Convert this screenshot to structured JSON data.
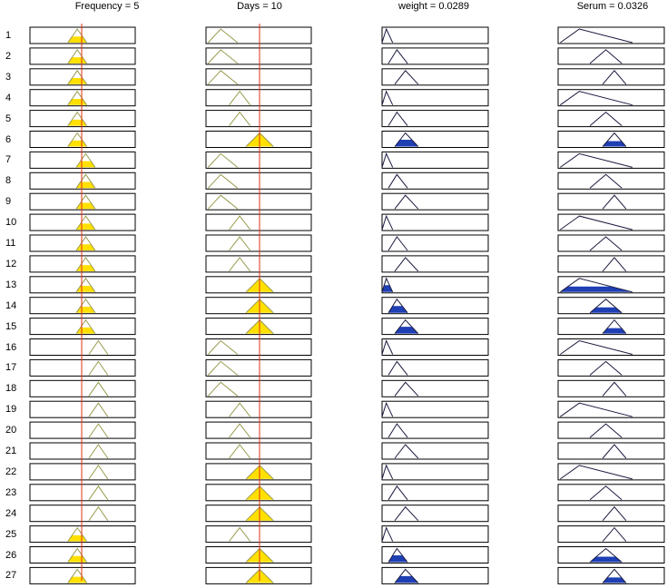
{
  "headers": [
    {
      "label": "Frequency = 5",
      "name": "frequency-header"
    },
    {
      "label": "Days = 10",
      "name": "days-header"
    },
    {
      "label": "weight = 0.0289",
      "name": "weight-header"
    },
    {
      "label": "Serum = 0.0326",
      "name": "serum-header"
    }
  ],
  "rows": [
    {
      "num": "1",
      "mf": [
        "f1",
        "d1",
        "w1",
        "s1"
      ],
      "fired": [
        1,
        0,
        0,
        0
      ]
    },
    {
      "num": "2",
      "mf": [
        "f1",
        "d1",
        "w2",
        "s2"
      ],
      "fired": [
        1,
        0,
        0,
        0
      ]
    },
    {
      "num": "3",
      "mf": [
        "f1",
        "d1",
        "w3",
        "s3"
      ],
      "fired": [
        1,
        0,
        0,
        0
      ]
    },
    {
      "num": "4",
      "mf": [
        "f1",
        "d2",
        "w1",
        "s1"
      ],
      "fired": [
        1,
        0,
        0,
        0
      ]
    },
    {
      "num": "5",
      "mf": [
        "f1",
        "d2",
        "w2",
        "s2"
      ],
      "fired": [
        1,
        0,
        0,
        0
      ]
    },
    {
      "num": "6",
      "mf": [
        "f1",
        "d3",
        "w3",
        "s3"
      ],
      "fired": [
        1,
        1,
        1,
        1
      ]
    },
    {
      "num": "7",
      "mf": [
        "f2",
        "d1",
        "w1",
        "s1"
      ],
      "fired": [
        1,
        0,
        0,
        0
      ]
    },
    {
      "num": "8",
      "mf": [
        "f2",
        "d1",
        "w2",
        "s2"
      ],
      "fired": [
        1,
        0,
        0,
        0
      ]
    },
    {
      "num": "9",
      "mf": [
        "f2",
        "d1",
        "w3",
        "s3"
      ],
      "fired": [
        1,
        0,
        0,
        0
      ]
    },
    {
      "num": "10",
      "mf": [
        "f2",
        "d2",
        "w1",
        "s1"
      ],
      "fired": [
        1,
        0,
        0,
        0
      ]
    },
    {
      "num": "11",
      "mf": [
        "f2",
        "d2",
        "w2",
        "s2"
      ],
      "fired": [
        1,
        0,
        0,
        0
      ]
    },
    {
      "num": "12",
      "mf": [
        "f2",
        "d2",
        "w3",
        "s3"
      ],
      "fired": [
        1,
        0,
        0,
        0
      ]
    },
    {
      "num": "13",
      "mf": [
        "f2",
        "d3",
        "w1",
        "s1"
      ],
      "fired": [
        1,
        1,
        1,
        1
      ]
    },
    {
      "num": "14",
      "mf": [
        "f2",
        "d3",
        "w2",
        "s2"
      ],
      "fired": [
        1,
        1,
        1,
        1
      ]
    },
    {
      "num": "15",
      "mf": [
        "f2",
        "d3",
        "w3",
        "s3"
      ],
      "fired": [
        1,
        1,
        1,
        1
      ]
    },
    {
      "num": "16",
      "mf": [
        "f3",
        "d1",
        "w1",
        "s1"
      ],
      "fired": [
        0,
        0,
        0,
        0
      ]
    },
    {
      "num": "17",
      "mf": [
        "f3",
        "d1",
        "w2",
        "s2"
      ],
      "fired": [
        0,
        0,
        0,
        0
      ]
    },
    {
      "num": "18",
      "mf": [
        "f3",
        "d1",
        "w3",
        "s3"
      ],
      "fired": [
        0,
        0,
        0,
        0
      ]
    },
    {
      "num": "19",
      "mf": [
        "f3",
        "d2",
        "w1",
        "s1"
      ],
      "fired": [
        0,
        0,
        0,
        0
      ]
    },
    {
      "num": "20",
      "mf": [
        "f3",
        "d2",
        "w2",
        "s2"
      ],
      "fired": [
        0,
        0,
        0,
        0
      ]
    },
    {
      "num": "21",
      "mf": [
        "f3",
        "d2",
        "w3",
        "s3"
      ],
      "fired": [
        0,
        0,
        0,
        0
      ]
    },
    {
      "num": "22",
      "mf": [
        "f3",
        "d3",
        "w1",
        "s1"
      ],
      "fired": [
        0,
        1,
        0,
        0
      ]
    },
    {
      "num": "23",
      "mf": [
        "f3",
        "d3",
        "w2",
        "s2"
      ],
      "fired": [
        0,
        1,
        0,
        0
      ]
    },
    {
      "num": "24",
      "mf": [
        "f3",
        "d3",
        "w3",
        "s3"
      ],
      "fired": [
        0,
        1,
        0,
        0
      ]
    },
    {
      "num": "25",
      "mf": [
        "f1",
        "d2",
        "w1",
        "s3"
      ],
      "fired": [
        1,
        0,
        0,
        0
      ]
    },
    {
      "num": "26",
      "mf": [
        "f1",
        "d3",
        "w2",
        "s2"
      ],
      "fired": [
        1,
        1,
        1,
        1
      ]
    },
    {
      "num": "27",
      "mf": [
        "f1",
        "d3",
        "w3",
        "s3"
      ],
      "fired": [
        1,
        1,
        1,
        1
      ]
    }
  ],
  "colors": {
    "input_fill": "#ffe000",
    "output_fill": "#1f3fb5",
    "input_outline": "#9a9a50",
    "output_outline": "#1a1a40",
    "index_line": "#e03010",
    "frame": "#000000"
  }
}
